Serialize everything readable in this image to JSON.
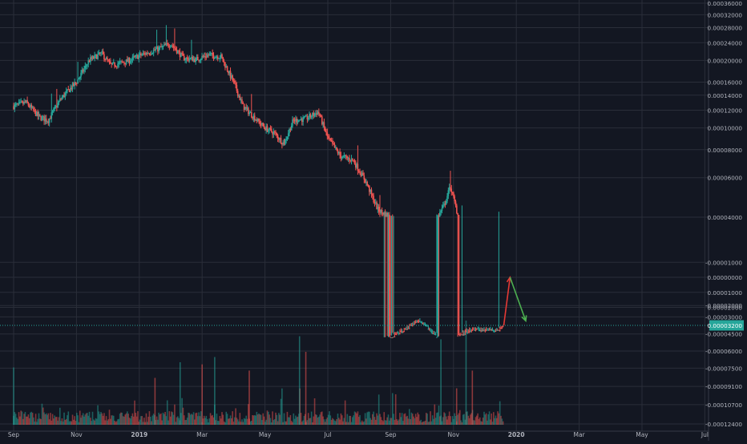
{
  "colors": {
    "background": "#131722",
    "grid": "#2a2e39",
    "axis_text": "#b2b5be",
    "up": "#26a69a",
    "down": "#ef5350",
    "price_line": "#26a69a",
    "arrow_down": "#e53935",
    "arrow_up": "#4caf50",
    "price_tag_bg": "#26a69a",
    "price_tag_text": "#ffffff"
  },
  "chart_data": {
    "type": "candlestick",
    "y_scale": "logarithmic",
    "price_axis_labels": [
      {
        "label": "0.00036000",
        "value": 0.00036
      },
      {
        "label": "0.00032000",
        "value": 0.00032
      },
      {
        "label": "0.00028000",
        "value": 0.00028
      },
      {
        "label": "0.00024000",
        "value": 0.00024
      },
      {
        "label": "0.00020000",
        "value": 0.0002
      },
      {
        "label": "0.00016000",
        "value": 0.00016
      },
      {
        "label": "0.00014000",
        "value": 0.00014
      },
      {
        "label": "0.00012000",
        "value": 0.00012
      },
      {
        "label": "0.00010000",
        "value": 0.0001
      },
      {
        "label": "0.00008000",
        "value": 8e-05
      },
      {
        "label": "0.00006000",
        "value": 6e-05
      },
      {
        "label": "0.00004000",
        "value": 4e-05
      },
      {
        "label": "0.00002000",
        "value": 2e-05
      },
      {
        "label": "0.00001000",
        "value": 1e-05
      },
      {
        "label": "0.00000000",
        "value": 0
      },
      {
        "label": "-0.00001000",
        "value": -1e-05
      },
      {
        "label": "-0.00002000",
        "value": -2e-05
      },
      {
        "label": "-0.00003000",
        "value": -3e-05
      },
      {
        "label": "-0.00004500",
        "value": -4.5e-05
      },
      {
        "label": "-0.00006000",
        "value": -6e-05
      },
      {
        "label": "-0.00007500",
        "value": -7.5e-05
      },
      {
        "label": "-0.00009100",
        "value": -9.1e-05
      },
      {
        "label": "-0.00010700",
        "value": -0.000107
      },
      {
        "label": "-0.00012400",
        "value": -0.000124
      }
    ],
    "time_axis_labels": [
      {
        "label": "Sep",
        "bold": false
      },
      {
        "label": "Nov",
        "bold": false
      },
      {
        "label": "2019",
        "bold": true
      },
      {
        "label": "Mar",
        "bold": false
      },
      {
        "label": "May",
        "bold": false
      },
      {
        "label": "Jul",
        "bold": false
      },
      {
        "label": "Sep",
        "bold": false
      },
      {
        "label": "Nov",
        "bold": false
      },
      {
        "label": "2020",
        "bold": true
      },
      {
        "label": "Mar",
        "bold": false
      },
      {
        "label": "May",
        "bold": false
      },
      {
        "label": "Jul",
        "bold": false
      }
    ],
    "current_price": {
      "label": "0.00003200",
      "value": 3.2e-05
    },
    "price_path": [
      {
        "month": 0.0,
        "price": 0.000125
      },
      {
        "month": 0.4,
        "price": 0.00013
      },
      {
        "month": 0.8,
        "price": 0.000112
      },
      {
        "month": 1.1,
        "price": 0.000108
      },
      {
        "month": 1.5,
        "price": 0.000135
      },
      {
        "month": 2.0,
        "price": 0.00016
      },
      {
        "month": 2.4,
        "price": 0.0002
      },
      {
        "month": 2.8,
        "price": 0.000215
      },
      {
        "month": 3.1,
        "price": 0.00019
      },
      {
        "month": 3.6,
        "price": 0.000198
      },
      {
        "month": 4.0,
        "price": 0.00021
      },
      {
        "month": 4.6,
        "price": 0.000225
      },
      {
        "month": 5.0,
        "price": 0.000238
      },
      {
        "month": 5.4,
        "price": 0.000205
      },
      {
        "month": 5.8,
        "price": 0.000202
      },
      {
        "month": 6.2,
        "price": 0.000212
      },
      {
        "month": 6.6,
        "price": 0.000208
      },
      {
        "month": 7.0,
        "price": 0.00016
      },
      {
        "month": 7.3,
        "price": 0.000125
      },
      {
        "month": 7.7,
        "price": 0.00011
      },
      {
        "month": 8.0,
        "price": 0.0001
      },
      {
        "month": 8.3,
        "price": 9.5e-05
      },
      {
        "month": 8.6,
        "price": 8.5e-05
      },
      {
        "month": 8.9,
        "price": 0.000108
      },
      {
        "month": 9.3,
        "price": 0.00011
      },
      {
        "month": 9.7,
        "price": 0.000118
      },
      {
        "month": 10.0,
        "price": 9e-05
      },
      {
        "month": 10.4,
        "price": 7.5e-05
      },
      {
        "month": 10.8,
        "price": 7.2e-05
      },
      {
        "month": 11.2,
        "price": 5.8e-05
      },
      {
        "month": 11.6,
        "price": 4.3e-05
      },
      {
        "month": 12.0,
        "price": 4e-05
      },
      {
        "month": 12.5,
        "price": 3.4e-05
      },
      {
        "month": 12.9,
        "price": 2.8e-05
      },
      {
        "month": 13.3,
        "price": 3.6e-05
      },
      {
        "month": 13.7,
        "price": 4.5e-05
      },
      {
        "month": 13.9,
        "price": 5.5e-05
      },
      {
        "month": 14.2,
        "price": 3.8e-05
      },
      {
        "month": 14.6,
        "price": 3.4e-05
      },
      {
        "month": 15.1,
        "price": 3.5e-05
      },
      {
        "month": 15.4,
        "price": 3.5e-05
      },
      {
        "month": 15.6,
        "price": 3.2e-05
      }
    ],
    "drawn_arrows": [
      {
        "name": "down",
        "from": {
          "month": 15.6,
          "price": 3.2e-05
        },
        "to": {
          "month": 15.8,
          "price": 0
        }
      },
      {
        "name": "up",
        "from": {
          "month": 15.8,
          "price": 0
        },
        "to": {
          "month": 16.3,
          "price": 2.9e-05
        }
      }
    ],
    "volume_spikes": [
      {
        "month": 0.0,
        "level": 0.55
      },
      {
        "month": 4.5,
        "level": 0.45
      },
      {
        "month": 5.3,
        "level": 0.6
      },
      {
        "month": 6.0,
        "level": 0.58
      },
      {
        "month": 6.4,
        "level": 0.65
      },
      {
        "month": 7.5,
        "level": 0.52
      },
      {
        "month": 9.1,
        "level": 0.85
      },
      {
        "month": 9.3,
        "level": 0.7
      },
      {
        "month": 13.6,
        "level": 0.82
      },
      {
        "month": 14.1,
        "level": 0.35
      },
      {
        "month": 14.4,
        "level": 1.0
      },
      {
        "month": 14.6,
        "level": 0.52
      }
    ]
  }
}
